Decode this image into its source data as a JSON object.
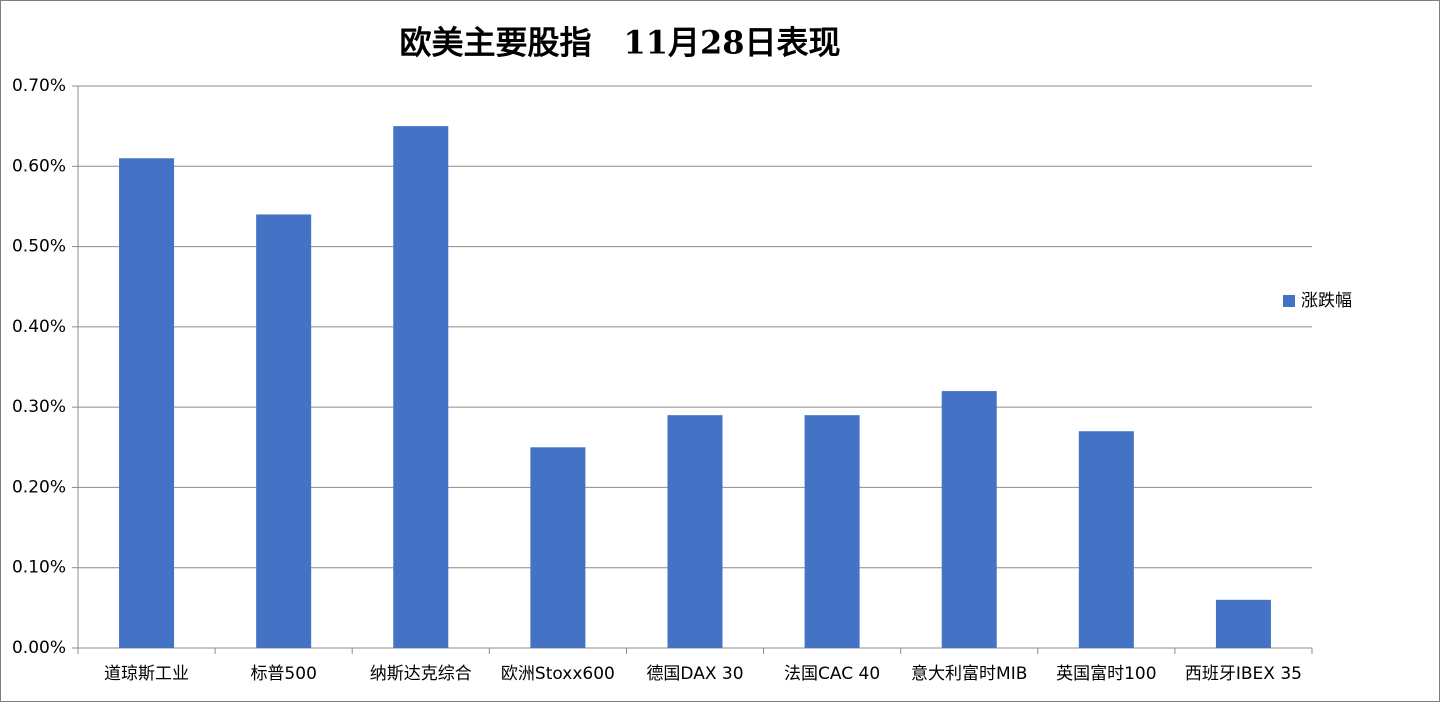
{
  "chart_data": {
    "type": "bar",
    "title": "欧美主要股指　11月28日表现",
    "categories": [
      "道琼斯工业",
      "标普500",
      "纳斯达克综合",
      "欧洲Stoxx600",
      "德国DAX 30",
      "法国CAC 40",
      "意大利富时MIB",
      "英国富时100",
      "西班牙IBEX 35"
    ],
    "series": [
      {
        "name": "涨跌幅",
        "color": "#4472c4",
        "values": [
          0.61,
          0.54,
          0.65,
          0.25,
          0.29,
          0.29,
          0.32,
          0.27,
          0.06
        ]
      }
    ],
    "ylim": [
      0,
      0.7
    ],
    "yticks": [
      {
        "value": 0,
        "label": "0.00%"
      },
      {
        "value": 0.1,
        "label": "0.10%"
      },
      {
        "value": 0.2,
        "label": "0.20%"
      },
      {
        "value": 0.3,
        "label": "0.30%"
      },
      {
        "value": 0.4,
        "label": "0.40%"
      },
      {
        "value": 0.5,
        "label": "0.50%"
      },
      {
        "value": 0.6,
        "label": "0.60%"
      },
      {
        "value": 0.7,
        "label": "0.70%"
      }
    ],
    "grid": true,
    "legend": "right"
  }
}
